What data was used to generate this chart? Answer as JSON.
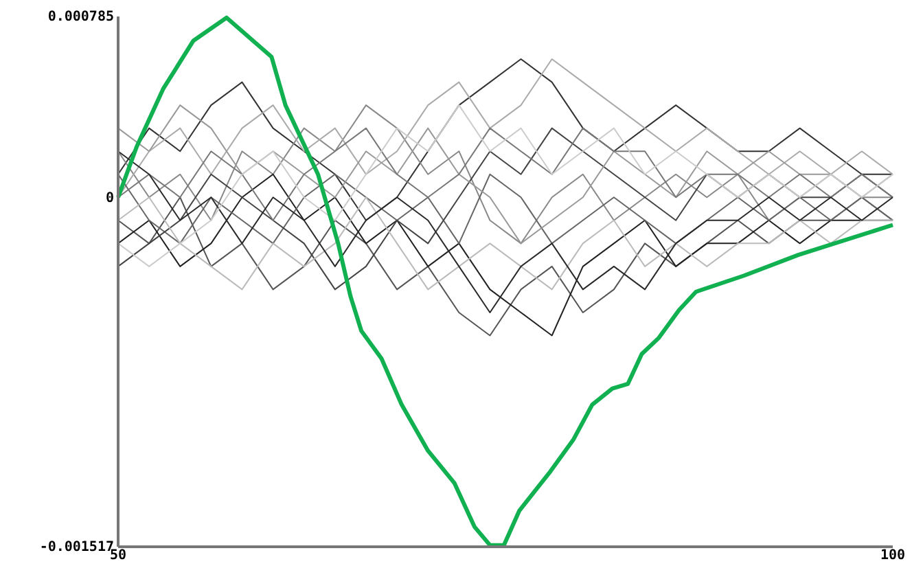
{
  "chart_data": {
    "type": "line",
    "xlim": [
      50,
      100
    ],
    "xticks": [
      50,
      100
    ],
    "ylim": [
      -0.001517,
      0.000785
    ],
    "yticks": [
      -0.001517,
      0,
      0.000785
    ],
    "grid": false,
    "marker": "none",
    "line_style": "solid",
    "x": [
      50,
      52,
      54,
      56,
      58,
      60,
      62,
      64,
      66,
      68,
      70,
      72,
      74,
      76,
      78,
      80,
      82,
      84,
      86,
      88,
      90,
      92,
      94,
      96,
      98,
      100
    ],
    "series": [
      {
        "color": "#333333",
        "values": [
          0.0001,
          0.0003,
          0.0002,
          0.0004,
          0.0005,
          0.0003,
          0.0002,
          0.0001,
          -0.0001,
          0,
          0.0002,
          0.0004,
          0.0005,
          0.0006,
          0.0005,
          0.0003,
          0.0002,
          0.0003,
          0.0004,
          0.0003,
          0.0002,
          0.0002,
          0.0003,
          0.0002,
          0.0001,
          0.0001
        ]
      },
      {
        "color": "#555555",
        "values": [
          -0.0001,
          -0.0002,
          0,
          -0.0003,
          -0.0002,
          -0.0004,
          -0.0003,
          -0.0001,
          -0.0002,
          -0.0004,
          -0.0003,
          -0.0005,
          -0.0006,
          -0.0004,
          -0.0003,
          -0.0005,
          -0.0004,
          -0.0002,
          -0.0003,
          -0.0002,
          -0.0001,
          -0.0002,
          -0.0001,
          -0.0001,
          0,
          -0.0001
        ]
      },
      {
        "color": "#888888",
        "values": [
          0.0002,
          0,
          0.0001,
          -0.0001,
          0.0002,
          0.0001,
          0.0003,
          0.0002,
          0.0004,
          0.0003,
          0.0001,
          0.0002,
          -0.0001,
          -0.0002,
          0,
          0.0001,
          -0.0001,
          0,
          0.0001,
          0,
          0.0001,
          -0.0001,
          0,
          0.0001,
          0,
          0
        ]
      },
      {
        "color": "#222222",
        "values": [
          -0.0002,
          -0.0001,
          -0.0003,
          -0.0002,
          0,
          0.0001,
          -0.0001,
          0,
          -0.0002,
          -0.0001,
          -0.0003,
          -0.0002,
          -0.0004,
          -0.0005,
          -0.0006,
          -0.0003,
          -0.0002,
          -0.0001,
          -0.0003,
          -0.0002,
          -0.0002,
          -0.0001,
          -0.0002,
          -0.0001,
          -0.0001,
          -0.0001
        ]
      },
      {
        "color": "#aaaaaa",
        "values": [
          0,
          0.0002,
          0.0003,
          0.0001,
          0.0003,
          0.0004,
          0.0002,
          0.0003,
          0.0001,
          0.0002,
          0.0004,
          0.0005,
          0.0003,
          0.0004,
          0.0006,
          0.0005,
          0.0004,
          0.0003,
          0.0002,
          0.0003,
          0.0002,
          0.0001,
          0.0002,
          0.0001,
          0.0002,
          0.0001
        ]
      },
      {
        "color": "#666666",
        "values": [
          0.0001,
          -0.0001,
          -0.0002,
          0,
          -0.0001,
          -0.0002,
          0,
          0.0001,
          0,
          -0.0001,
          0,
          -0.0002,
          0.0001,
          0,
          -0.0002,
          -0.0001,
          0,
          -0.0001,
          -0.0002,
          -0.0001,
          0,
          -0.0001,
          0,
          -0.0001,
          0,
          -0.0001
        ]
      },
      {
        "color": "#444444",
        "values": [
          -0.0003,
          -0.0002,
          -0.0001,
          0.0001,
          0,
          -0.0001,
          -0.0002,
          -0.0004,
          -0.0003,
          -0.0001,
          -0.0002,
          0,
          0.0002,
          0.0001,
          0.0003,
          0.0002,
          0.0001,
          0,
          -0.0001,
          0.0001,
          0,
          0.0001,
          0,
          0,
          0.0001,
          0
        ]
      },
      {
        "color": "#999999",
        "values": [
          0.0003,
          0.0002,
          0.0004,
          0.0003,
          0.0001,
          0.0002,
          0.0001,
          0,
          0.0002,
          0.0001,
          0.0003,
          0.0001,
          0,
          -0.0002,
          -0.0001,
          0,
          0.0002,
          0.0001,
          0,
          0.0002,
          0.0001,
          0.0002,
          0.0001,
          0.0001,
          0,
          0.0001
        ]
      },
      {
        "color": "#bbbbbb",
        "values": [
          -0.0001,
          0,
          -0.0002,
          -0.0003,
          -0.0004,
          -0.0002,
          -0.0003,
          -0.0002,
          0,
          -0.0002,
          -0.0004,
          -0.0003,
          -0.0002,
          -0.0003,
          -0.0004,
          -0.0002,
          -0.0001,
          -0.0003,
          -0.0002,
          -0.0003,
          -0.0002,
          -0.0002,
          -0.0001,
          -0.0002,
          -0.0001,
          -0.0001
        ]
      },
      {
        "color": "#777777",
        "values": [
          0,
          0.0001,
          0,
          0.0002,
          0.0001,
          -0.0001,
          0.0001,
          0.0002,
          0.0003,
          0.0001,
          0,
          0.0001,
          0.0003,
          0.0002,
          0.0001,
          0.0003,
          0.0002,
          0.0002,
          0,
          0.0001,
          0.0001,
          0,
          0.0001,
          0,
          0.0001,
          0
        ]
      },
      {
        "color": "#2a2a2a",
        "values": [
          0.0002,
          0.0001,
          -0.0001,
          0,
          -0.0002,
          0,
          -0.0001,
          -0.0003,
          -0.0001,
          0,
          -0.0001,
          -0.0003,
          -0.0005,
          -0.0003,
          -0.0002,
          -0.0004,
          -0.0003,
          -0.0004,
          -0.0002,
          -0.0001,
          -0.0001,
          0,
          -0.0001,
          0,
          -0.0001,
          0
        ]
      },
      {
        "color": "#cccccc",
        "values": [
          -0.0002,
          -0.0003,
          -0.0002,
          -0.0001,
          0.0001,
          0.0002,
          0,
          -0.0001,
          0.0001,
          0.0003,
          0.0002,
          0.0004,
          0.0002,
          0.0003,
          0.0001,
          0.0002,
          0.0003,
          0.0001,
          0.0002,
          0.0001,
          0,
          0.0001,
          0,
          0.0001,
          0,
          0.0001
        ]
      },
      {
        "color": "#11b050",
        "x": [
          50,
          51.2,
          52.9,
          54.86,
          57,
          59.9,
          60.8,
          62.9,
          64.2,
          65,
          65.7,
          67,
          68.3,
          70,
          71.7,
          73,
          74,
          74.9,
          75.9,
          77.9,
          79.4,
          80.6,
          81.9,
          82.9,
          83.8,
          84.9,
          86.2,
          87.3,
          90.4,
          93.9,
          100
        ],
        "values": [
          0,
          0.00022,
          0.00047,
          0.00068,
          0.00078,
          0.00061,
          0.0004,
          0.0001,
          -0.0002,
          -0.00043,
          -0.00058,
          -0.0007,
          -0.0009,
          -0.0011,
          -0.00124,
          -0.00143,
          -0.00151,
          -0.00151,
          -0.00136,
          -0.00119,
          -0.00105,
          -0.0009,
          -0.00083,
          -0.00081,
          -0.00068,
          -0.00061,
          -0.00049,
          -0.00041,
          -0.00034,
          -0.00025,
          -0.00012
        ]
      }
    ]
  }
}
